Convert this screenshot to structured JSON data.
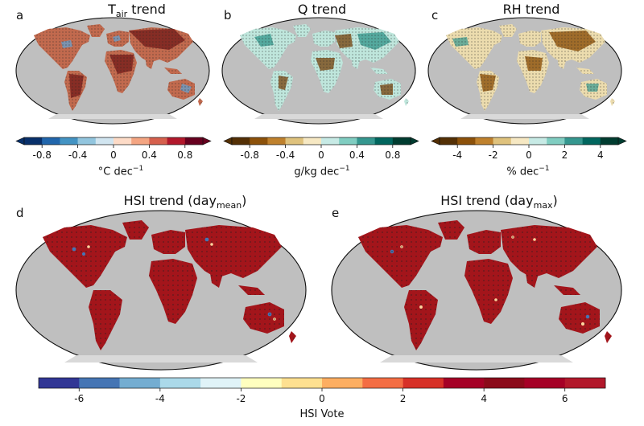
{
  "panels": {
    "a": {
      "letter": "a",
      "title_main": "T",
      "title_sub": "air",
      "title_rest": " trend"
    },
    "b": {
      "letter": "b",
      "title": "Q trend"
    },
    "c": {
      "letter": "c",
      "title": "RH trend"
    },
    "d": {
      "letter": "d",
      "title_main": "HSI trend (day",
      "title_sub": "mean",
      "title_rest": ")"
    },
    "e": {
      "letter": "e",
      "title_main": "HSI trend (day",
      "title_sub": "max",
      "title_rest": ")"
    }
  },
  "colorbars": {
    "tair": {
      "ticks": [
        "-0.8",
        "-0.4",
        "0",
        "0.4",
        "0.8"
      ],
      "label_main": "°C dec",
      "label_sup": "−1",
      "colors": [
        "#08306b",
        "#2166ac",
        "#4393c3",
        "#92c5de",
        "#d1e5f0",
        "#fddbc7",
        "#f4a582",
        "#d6604d",
        "#b2182b",
        "#67001f"
      ]
    },
    "q": {
      "ticks": [
        "-0.8",
        "-0.4",
        "0",
        "0.4",
        "0.8"
      ],
      "label_main": "g/kg dec",
      "label_sup": "−1",
      "colors": [
        "#543005",
        "#8c510a",
        "#bf812d",
        "#dfc27d",
        "#f6e8c3",
        "#c7eae5",
        "#80cdc1",
        "#35978f",
        "#01665e",
        "#003c30"
      ]
    },
    "rh": {
      "ticks": [
        "-4",
        "-2",
        "0",
        "2",
        "4"
      ],
      "label_main": "% dec",
      "label_sup": "−1",
      "colors": [
        "#543005",
        "#8c510a",
        "#bf812d",
        "#dfc27d",
        "#f6e8c3",
        "#c7eae5",
        "#80cdc1",
        "#35978f",
        "#01665e",
        "#003c30"
      ]
    },
    "hsi": {
      "ticks": [
        "-6",
        "-4",
        "-2",
        "0",
        "2",
        "4",
        "6"
      ],
      "label": "HSI Vote",
      "colors": [
        "#313695",
        "#4575b4",
        "#74add1",
        "#abd9e9",
        "#e0f3f8",
        "#ffffbf",
        "#fee090",
        "#fdae61",
        "#f46d43",
        "#d73027",
        "#a50026",
        "#8b0a1a",
        "#a50026",
        "#b2182b"
      ]
    }
  }
}
